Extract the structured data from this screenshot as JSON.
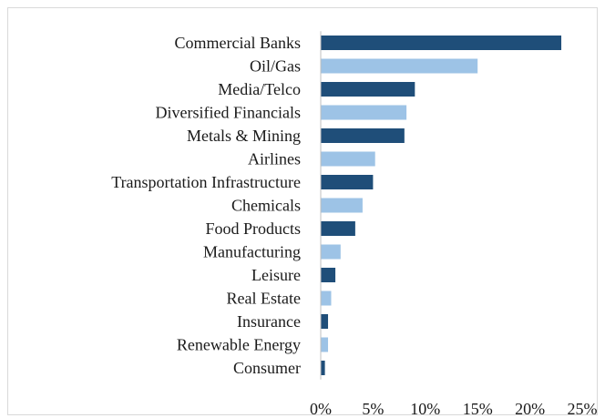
{
  "chart_data": {
    "type": "bar",
    "orientation": "horizontal",
    "title": "",
    "xlabel": "",
    "ylabel": "",
    "xlim": [
      0,
      25
    ],
    "x_ticks": [
      "0%",
      "5%",
      "10%",
      "15%",
      "20%",
      "25%"
    ],
    "grid": false,
    "legend": "none",
    "categories": [
      "Commercial Banks",
      "Oil/Gas",
      "Media/Telco",
      "Diversified Financials",
      "Metals & Mining",
      "Airlines",
      "Transportation Infrastructure",
      "Chemicals",
      "Food Products",
      "Manufacturing",
      "Leisure",
      "Real Estate",
      "Insurance",
      "Renewable Energy",
      "Consumer"
    ],
    "values": [
      23,
      15,
      9,
      8.2,
      8,
      5.2,
      5,
      4,
      3.3,
      1.9,
      1.4,
      1,
      0.7,
      0.7,
      0.4
    ],
    "bar_colors": [
      "#1f4e79",
      "#9dc3e6",
      "#1f4e79",
      "#9dc3e6",
      "#1f4e79",
      "#9dc3e6",
      "#1f4e79",
      "#9dc3e6",
      "#1f4e79",
      "#9dc3e6",
      "#1f4e79",
      "#9dc3e6",
      "#1f4e79",
      "#9dc3e6",
      "#1f4e79"
    ],
    "colors": {
      "dark_bar": "#1f4e79",
      "light_bar": "#9dc3e6",
      "axis_line": "#bfbfbf",
      "frame": "#d9d9d9"
    }
  }
}
